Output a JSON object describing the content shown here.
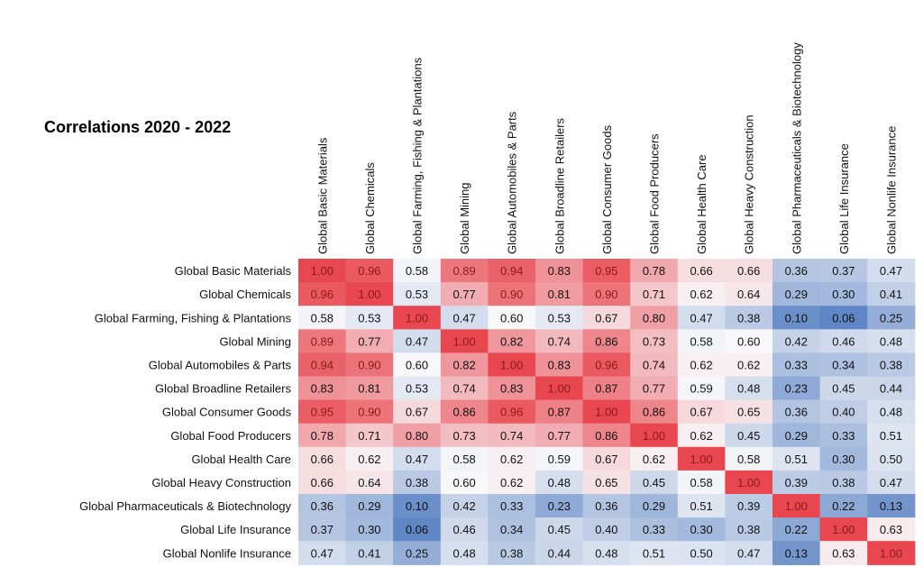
{
  "chart_data": {
    "type": "heatmap",
    "title": "Correlations 2020 - 2022",
    "rows": [
      "Global Basic Materials",
      "Global Chemicals",
      "Global Farming, Fishing & Plantations",
      "Global Mining",
      "Global Automobiles & Parts",
      "Global Broadline Retailers",
      "Global Consumer Goods",
      "Global Food Producers",
      "Global Health Care",
      "Global Heavy Construction",
      "Global Pharmaceuticals & Biotechnology",
      "Global Life Insurance",
      "Global Nonlife Insurance"
    ],
    "columns": [
      "Global Basic Materials",
      "Global Chemicals",
      "Global Farming, Fishing & Plantations",
      "Global Mining",
      "Global Automobiles & Parts",
      "Global Broadline Retailers",
      "Global Consumer Goods",
      "Global Food Producers",
      "Global Health Care",
      "Global Heavy Construction",
      "Global Pharmaceuticals & Biotechnology",
      "Global Life Insurance",
      "Global Nonlife Insurance"
    ],
    "values": [
      [
        1.0,
        0.96,
        0.58,
        0.89,
        0.94,
        0.83,
        0.95,
        0.78,
        0.66,
        0.66,
        0.36,
        0.37,
        0.47
      ],
      [
        0.96,
        1.0,
        0.53,
        0.77,
        0.9,
        0.81,
        0.9,
        0.71,
        0.62,
        0.64,
        0.29,
        0.3,
        0.41
      ],
      [
        0.58,
        0.53,
        1.0,
        0.47,
        0.6,
        0.53,
        0.67,
        0.8,
        0.47,
        0.38,
        0.1,
        0.06,
        0.25
      ],
      [
        0.89,
        0.77,
        0.47,
        1.0,
        0.82,
        0.74,
        0.86,
        0.73,
        0.58,
        0.6,
        0.42,
        0.46,
        0.48
      ],
      [
        0.94,
        0.9,
        0.6,
        0.82,
        1.0,
        0.83,
        0.96,
        0.74,
        0.62,
        0.62,
        0.33,
        0.34,
        0.38
      ],
      [
        0.83,
        0.81,
        0.53,
        0.74,
        0.83,
        1.0,
        0.87,
        0.77,
        0.59,
        0.48,
        0.23,
        0.45,
        0.44
      ],
      [
        0.95,
        0.9,
        0.67,
        0.86,
        0.96,
        0.87,
        1.0,
        0.86,
        0.67,
        0.65,
        0.36,
        0.4,
        0.48
      ],
      [
        0.78,
        0.71,
        0.8,
        0.73,
        0.74,
        0.77,
        0.86,
        1.0,
        0.62,
        0.45,
        0.29,
        0.33,
        0.51
      ],
      [
        0.66,
        0.62,
        0.47,
        0.58,
        0.62,
        0.59,
        0.67,
        0.62,
        1.0,
        0.58,
        0.51,
        0.3,
        0.5
      ],
      [
        0.66,
        0.64,
        0.38,
        0.6,
        0.62,
        0.48,
        0.65,
        0.45,
        0.58,
        1.0,
        0.39,
        0.38,
        0.47
      ],
      [
        0.36,
        0.29,
        0.1,
        0.42,
        0.33,
        0.23,
        0.36,
        0.29,
        0.51,
        0.39,
        1.0,
        0.22,
        0.13
      ],
      [
        0.37,
        0.3,
        0.06,
        0.46,
        0.34,
        0.45,
        0.4,
        0.33,
        0.3,
        0.38,
        0.22,
        1.0,
        0.63
      ],
      [
        0.47,
        0.41,
        0.25,
        0.48,
        0.38,
        0.44,
        0.48,
        0.51,
        0.5,
        0.47,
        0.13,
        0.63,
        1.0
      ]
    ],
    "colors": {
      "high": "#e8474f",
      "mid": "#f8f8fa",
      "low": "#5c84c4",
      "highlight_text": "#8b1a1a",
      "text": "#111111"
    }
  }
}
